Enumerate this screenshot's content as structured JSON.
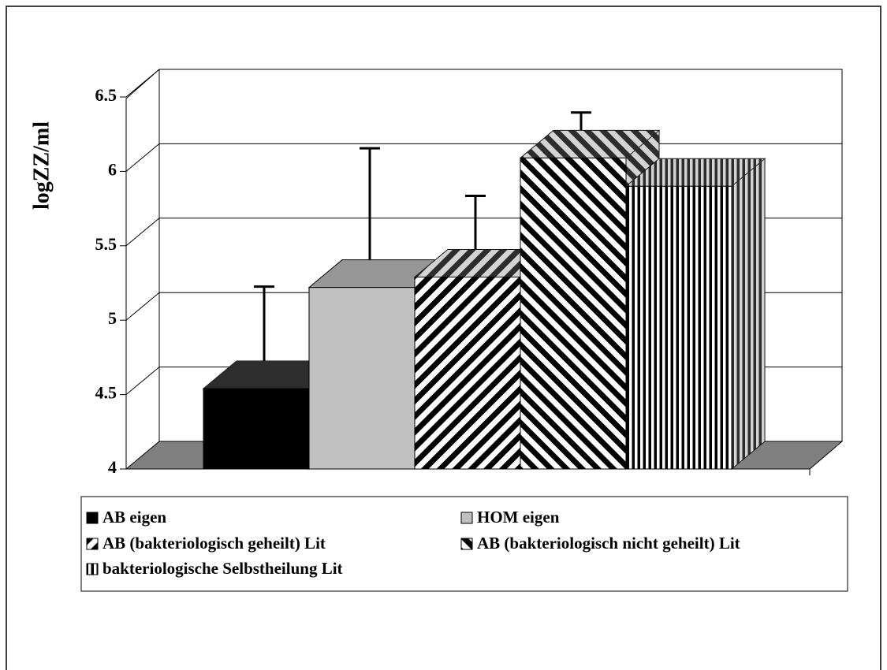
{
  "chart_data": {
    "type": "bar3d",
    "y_label": "logZZ/ml",
    "ylim": [
      4,
      6.5
    ],
    "yticks": [
      4,
      4.5,
      5,
      5.5,
      6,
      6.5
    ],
    "grid": true,
    "series": [
      {
        "name": "AB eigen",
        "color": "#000000",
        "pattern": "solid",
        "values": [
          4.54
        ],
        "errors": [
          0.5
        ]
      },
      {
        "name": "HOM eigen",
        "color": "#c0c0c0",
        "pattern": "solid",
        "values": [
          5.22
        ],
        "errors": [
          0.75
        ]
      },
      {
        "name": "AB (bakteriologisch geheilt) Lit",
        "color": "#000000",
        "pattern": "diagonal-down",
        "values": [
          5.29
        ],
        "errors": [
          0.36
        ]
      },
      {
        "name": "AB (bakteriologisch nicht geheilt) Lit",
        "color": "#000000",
        "pattern": "diagonal-up",
        "values": [
          6.09
        ],
        "errors": [
          0.12
        ]
      },
      {
        "name": "bakteriologische Selbstheilung Lit",
        "color": "#000000",
        "pattern": "vertical",
        "values": [
          5.9
        ],
        "errors": [
          null
        ]
      }
    ]
  }
}
